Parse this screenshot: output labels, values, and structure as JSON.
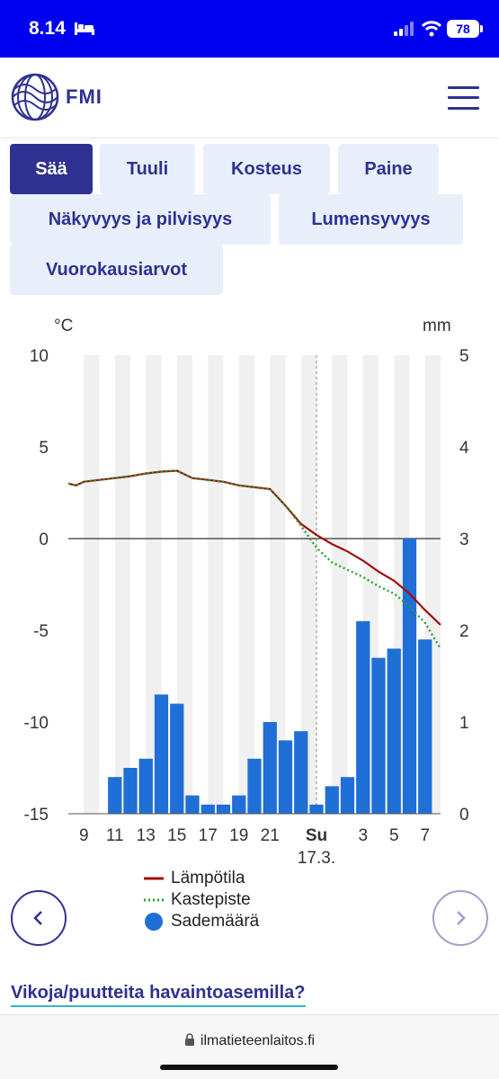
{
  "status_bar": {
    "time": "8.14",
    "battery": "78"
  },
  "header": {
    "logo_text": "FMI",
    "logo_icon": "globe-icon",
    "menu_icon": "hamburger-icon"
  },
  "tabs": [
    {
      "label": "Sää",
      "active": true
    },
    {
      "label": "Tuuli",
      "active": false
    },
    {
      "label": "Kosteus",
      "active": false
    },
    {
      "label": "Paine",
      "active": false
    },
    {
      "label": "Näkyvyys ja pilvisyys",
      "active": false
    },
    {
      "label": "Lumensyvyys",
      "active": false
    },
    {
      "label": "Vuorokausiarvot",
      "active": false
    }
  ],
  "chart_data": {
    "type": "bar+line",
    "y_left_unit": "°C",
    "y_right_unit": "mm",
    "y_left_range": [
      -15,
      10
    ],
    "y_right_range": [
      0,
      5
    ],
    "y_left_ticks": [
      10,
      5,
      0,
      -5,
      -10,
      -15
    ],
    "y_right_ticks": [
      5,
      4,
      3,
      2,
      1,
      0
    ],
    "x_hour_range": [
      8,
      32
    ],
    "x_ticks": [
      {
        "hour": 9,
        "label": "9"
      },
      {
        "hour": 11,
        "label": "11"
      },
      {
        "hour": 13,
        "label": "13"
      },
      {
        "hour": 15,
        "label": "15"
      },
      {
        "hour": 17,
        "label": "17"
      },
      {
        "hour": 19,
        "label": "19"
      },
      {
        "hour": 21,
        "label": "21"
      },
      {
        "hour": 24,
        "label": "Su",
        "sublabel": "17.3.",
        "bold": true
      },
      {
        "hour": 27,
        "label": "3"
      },
      {
        "hour": 29,
        "label": "5"
      },
      {
        "hour": 31,
        "label": "7"
      }
    ],
    "day_divider_hour": 24,
    "series": [
      {
        "name": "Lämpötila",
        "kind": "line",
        "color": "#a01010",
        "axis": "left",
        "points": [
          [
            8,
            3.0
          ],
          [
            8.5,
            2.9
          ],
          [
            9,
            3.1
          ],
          [
            10,
            3.2
          ],
          [
            11,
            3.3
          ],
          [
            12,
            3.4
          ],
          [
            13,
            3.55
          ],
          [
            14,
            3.65
          ],
          [
            15,
            3.7
          ],
          [
            16,
            3.3
          ],
          [
            17,
            3.2
          ],
          [
            18,
            3.1
          ],
          [
            19,
            2.9
          ],
          [
            20,
            2.8
          ],
          [
            21,
            2.7
          ],
          [
            22,
            1.8
          ],
          [
            23,
            0.8
          ],
          [
            24,
            0.2
          ],
          [
            25,
            -0.3
          ],
          [
            26,
            -0.7
          ],
          [
            27,
            -1.2
          ],
          [
            28,
            -1.8
          ],
          [
            29,
            -2.3
          ],
          [
            30,
            -3.0
          ],
          [
            31,
            -3.9
          ],
          [
            32,
            -4.7
          ]
        ]
      },
      {
        "name": "Kastepiste",
        "kind": "line",
        "color": "#2e9e2e",
        "axis": "left",
        "dashed": true,
        "points": [
          [
            8,
            3.0
          ],
          [
            8.5,
            2.9
          ],
          [
            9,
            3.1
          ],
          [
            10,
            3.2
          ],
          [
            11,
            3.3
          ],
          [
            12,
            3.4
          ],
          [
            13,
            3.55
          ],
          [
            14,
            3.65
          ],
          [
            15,
            3.7
          ],
          [
            16,
            3.3
          ],
          [
            17,
            3.2
          ],
          [
            18,
            3.1
          ],
          [
            19,
            2.9
          ],
          [
            20,
            2.8
          ],
          [
            21,
            2.7
          ],
          [
            22,
            1.8
          ],
          [
            23,
            0.7
          ],
          [
            24,
            -0.5
          ],
          [
            25,
            -1.3
          ],
          [
            26,
            -1.7
          ],
          [
            27,
            -2.1
          ],
          [
            28,
            -2.6
          ],
          [
            29,
            -3.0
          ],
          [
            30,
            -3.7
          ],
          [
            31,
            -4.6
          ],
          [
            32,
            -6.0
          ]
        ]
      },
      {
        "name": "Sademäärä",
        "kind": "bar",
        "color": "#1f6fd6",
        "axis": "right",
        "values": [
          [
            11,
            0.4
          ],
          [
            12,
            0.5
          ],
          [
            13,
            0.6
          ],
          [
            14,
            1.3
          ],
          [
            15,
            1.2
          ],
          [
            16,
            0.2
          ],
          [
            17,
            0.1
          ],
          [
            18,
            0.1
          ],
          [
            19,
            0.2
          ],
          [
            20,
            0.6
          ],
          [
            21,
            1.0
          ],
          [
            22,
            0.8
          ],
          [
            23,
            0.9
          ],
          [
            24,
            0.1
          ],
          [
            25,
            0.3
          ],
          [
            26,
            0.4
          ],
          [
            27,
            2.1
          ],
          [
            28,
            1.7
          ],
          [
            29,
            1.8
          ],
          [
            30,
            3.0
          ],
          [
            31,
            1.9
          ]
        ]
      }
    ]
  },
  "legend": [
    {
      "label": "Lämpötila",
      "symbol": "line",
      "color": "#a01010"
    },
    {
      "label": "Kastepiste",
      "symbol": "dotted-line",
      "color": "#2e9e2e"
    },
    {
      "label": "Sademäärä",
      "symbol": "circle",
      "color": "#1f6fd6"
    }
  ],
  "nav": {
    "prev_icon": "chevron-left-icon",
    "next_icon": "chevron-right-icon"
  },
  "issues_link": "Vikoja/puutteita havaintoasemilla?",
  "browser": {
    "url": "ilmatieteenlaitos.fi",
    "lock_icon": "lock-icon"
  }
}
